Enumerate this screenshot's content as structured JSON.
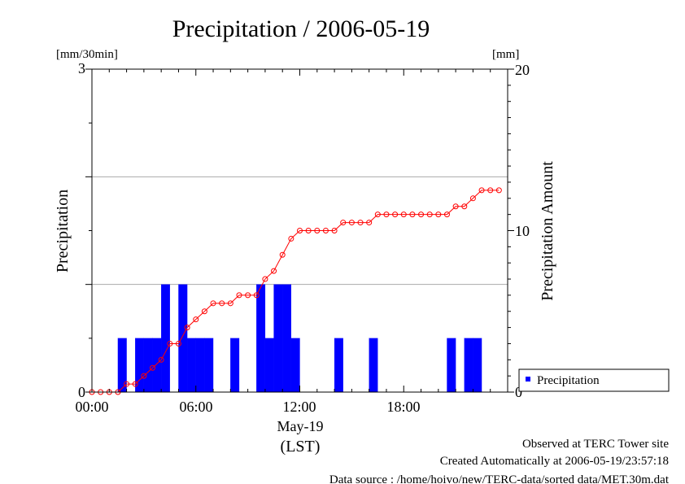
{
  "chart_data": {
    "type": "bar",
    "title": "Precipitation / 2006-05-19",
    "ylabel_left": "Precipitation",
    "ylabel_right": "Precipitation Amount",
    "left_unit": "[mm/30min]",
    "right_unit": "[mm]",
    "ylim_left": [
      0,
      3
    ],
    "ylim_right": [
      0,
      20
    ],
    "y_ticks_left": [
      "0",
      "3"
    ],
    "y_ticks_right": [
      "0",
      "10",
      "20"
    ],
    "x_ticks": [
      "00:00",
      "06:00",
      "12:00",
      "18:00"
    ],
    "x_label_date": "May-19",
    "x_label_tz": "(LST)",
    "grid": "horizontal",
    "legend_position": "bottom-right",
    "bar_color": "#0000ff",
    "line_color": "#ff0000",
    "series": [
      {
        "name": "Precipitation",
        "type": "bar",
        "axis": "left",
        "times": [
          "01:30",
          "02:30",
          "03:00",
          "03:30",
          "04:00",
          "05:00",
          "05:30",
          "06:00",
          "06:30",
          "08:00",
          "09:30",
          "10:00",
          "10:30",
          "11:00",
          "11:30",
          "14:00",
          "16:00",
          "20:30",
          "21:30",
          "22:00"
        ],
        "values": [
          0.5,
          0.5,
          0.5,
          0.5,
          1.0,
          1.0,
          0.5,
          0.5,
          0.5,
          0.5,
          1.0,
          0.5,
          1.0,
          1.0,
          0.5,
          0.5,
          0.5,
          0.5,
          0.5,
          0.5
        ]
      },
      {
        "name": "Precipitation Amount",
        "type": "line",
        "axis": "right",
        "times": [
          "00:00",
          "00:30",
          "01:00",
          "01:30",
          "02:00",
          "02:30",
          "03:00",
          "03:30",
          "04:00",
          "04:30",
          "05:00",
          "05:30",
          "06:00",
          "06:30",
          "07:00",
          "07:30",
          "08:00",
          "08:30",
          "09:00",
          "09:30",
          "10:00",
          "10:30",
          "11:00",
          "11:30",
          "12:00",
          "12:30",
          "13:00",
          "13:30",
          "14:00",
          "14:30",
          "15:00",
          "15:30",
          "16:00",
          "16:30",
          "17:00",
          "17:30",
          "18:00",
          "18:30",
          "19:00",
          "19:30",
          "20:00",
          "20:30",
          "21:00",
          "21:30",
          "22:00",
          "22:30",
          "23:00",
          "23:30"
        ],
        "values": [
          0,
          0,
          0,
          0,
          0.5,
          0.5,
          1.0,
          1.5,
          2.0,
          3.0,
          3.0,
          4.0,
          4.5,
          5.0,
          5.5,
          5.5,
          5.5,
          6.0,
          6.0,
          6.0,
          7.0,
          7.5,
          8.5,
          9.5,
          10.0,
          10.0,
          10.0,
          10.0,
          10.0,
          10.5,
          10.5,
          10.5,
          10.5,
          11.0,
          11.0,
          11.0,
          11.0,
          11.0,
          11.0,
          11.0,
          11.0,
          11.0,
          11.5,
          11.5,
          12.0,
          12.5,
          12.5,
          12.5
        ]
      }
    ]
  },
  "legend": {
    "label": "Precipitation"
  },
  "footer": {
    "line1": "Observed at TERC Tower site",
    "line2": "Created Automatically at 2006-05-19/23:57:18",
    "line3": "Data source : /home/hoivo/new/TERC-data/sorted  data/MET.30m.dat"
  }
}
